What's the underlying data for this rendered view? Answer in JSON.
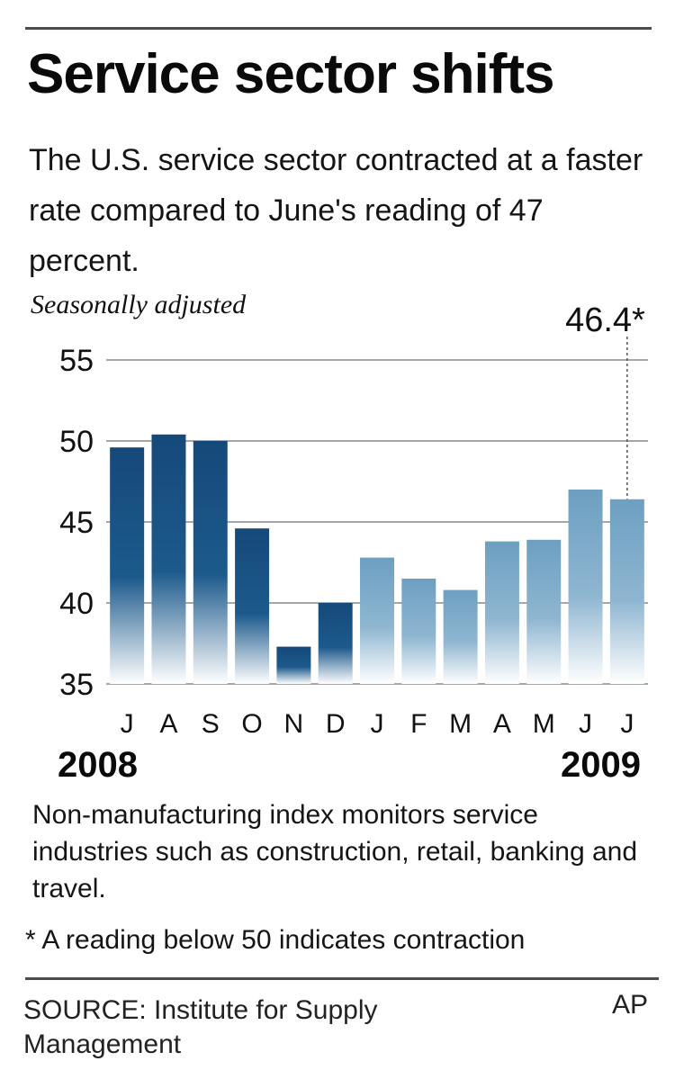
{
  "header": {
    "title": "Service sector shifts",
    "subtitle": "The U.S. service sector contracted at a faster rate compared to June's reading of 47 percent."
  },
  "chart_data": {
    "type": "bar",
    "unit_note": "Seasonally adjusted",
    "categories": [
      "J",
      "A",
      "S",
      "O",
      "N",
      "D",
      "J",
      "F",
      "M",
      "A",
      "M",
      "J",
      "J"
    ],
    "values": [
      49.6,
      50.4,
      50.0,
      44.6,
      37.3,
      40.0,
      42.8,
      41.5,
      40.8,
      43.8,
      43.9,
      47.0,
      46.4
    ],
    "years": {
      "start": "2008",
      "end": "2009"
    },
    "year_split_index": 6,
    "ylim": [
      35,
      55
    ],
    "yticks": [
      55,
      50,
      45,
      40,
      35
    ],
    "grid": true,
    "callout": {
      "index": 12,
      "label": "46.4*"
    },
    "colors": {
      "dark": "#15497a",
      "light": "#6d9fc1",
      "grid": "#8a8a8a"
    },
    "xlabel": "",
    "ylabel": ""
  },
  "notes": {
    "description": "Non-manufacturing index monitors service industries such as construction, retail, banking and travel.",
    "footnote": "* A reading below 50 indicates contraction"
  },
  "footer": {
    "source": "SOURCE: Institute for Supply Management",
    "credit": "AP"
  }
}
